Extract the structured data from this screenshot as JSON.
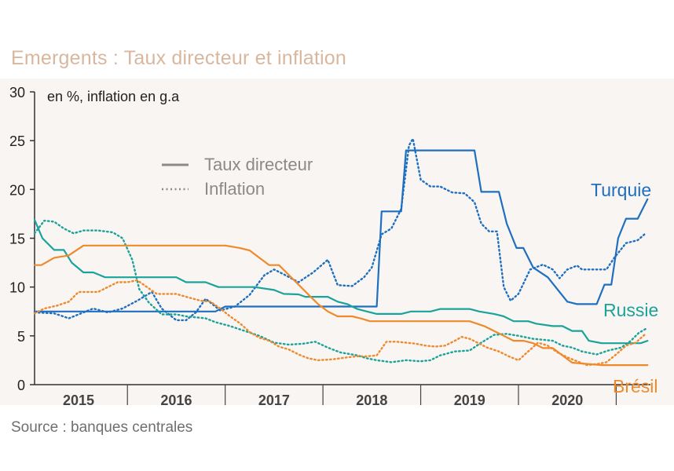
{
  "chart_data": {
    "type": "line",
    "title": "Emergents : Taux directeur et inflation",
    "unit_note": "en %, inflation en g.a",
    "source": "Source : banques centrales",
    "ylim": [
      0,
      30
    ],
    "yticks": [
      "0",
      "5",
      "10",
      "15",
      "20",
      "25",
      "30"
    ],
    "xlim": [
      2014.55,
      2020.85
    ],
    "xticks": [
      {
        "label": "2015",
        "x": 2015.0
      },
      {
        "label": "2016",
        "x": 2016.0
      },
      {
        "label": "2017",
        "x": 2017.0
      },
      {
        "label": "2018",
        "x": 2018.0
      },
      {
        "label": "2019",
        "x": 2019.0
      },
      {
        "label": "2020",
        "x": 2020.0
      }
    ],
    "year_dividers": [
      2015.5,
      2016.5,
      2017.5,
      2018.5,
      2019.5,
      2020.5
    ],
    "legend": {
      "policy_rate": "Taux directeur",
      "inflation": "Inflation",
      "position": "top-left"
    },
    "colors": {
      "turquie": "#1f6fc0",
      "russie": "#1aa39a",
      "bresil": "#ef8a2c"
    },
    "series": [
      {
        "name": "Turquie",
        "kind": "Taux directeur",
        "color_key": "turquie",
        "points": [
          [
            2014.55,
            7.5
          ],
          [
            2016.4,
            7.5
          ],
          [
            2016.5,
            8.0
          ],
          [
            2018.05,
            8.0
          ],
          [
            2018.1,
            17.75
          ],
          [
            2018.3,
            17.75
          ],
          [
            2018.35,
            24.0
          ],
          [
            2019.05,
            24.0
          ],
          [
            2019.12,
            19.75
          ],
          [
            2019.3,
            19.75
          ],
          [
            2019.38,
            16.5
          ],
          [
            2019.48,
            14.0
          ],
          [
            2019.55,
            14.0
          ],
          [
            2019.65,
            12.0
          ],
          [
            2019.8,
            11.0
          ],
          [
            2019.92,
            9.5
          ],
          [
            2020.0,
            8.5
          ],
          [
            2020.1,
            8.25
          ],
          [
            2020.3,
            8.25
          ],
          [
            2020.38,
            10.25
          ],
          [
            2020.45,
            10.25
          ],
          [
            2020.52,
            15.0
          ],
          [
            2020.6,
            17.0
          ],
          [
            2020.72,
            17.0
          ],
          [
            2020.82,
            19.0
          ]
        ]
      },
      {
        "name": "Turquie",
        "kind": "Inflation",
        "color_key": "turquie",
        "points": [
          [
            2014.55,
            7.4
          ],
          [
            2014.75,
            7.3
          ],
          [
            2014.9,
            6.8
          ],
          [
            2015.0,
            7.2
          ],
          [
            2015.15,
            7.8
          ],
          [
            2015.3,
            7.4
          ],
          [
            2015.45,
            7.8
          ],
          [
            2015.6,
            8.6
          ],
          [
            2015.75,
            9.5
          ],
          [
            2015.85,
            7.8
          ],
          [
            2016.0,
            6.6
          ],
          [
            2016.1,
            6.6
          ],
          [
            2016.2,
            7.4
          ],
          [
            2016.3,
            8.8
          ],
          [
            2016.45,
            7.6
          ],
          [
            2016.6,
            8.0
          ],
          [
            2016.75,
            9.2
          ],
          [
            2016.9,
            11.2
          ],
          [
            2017.0,
            11.8
          ],
          [
            2017.1,
            11.3
          ],
          [
            2017.25,
            10.5
          ],
          [
            2017.4,
            11.5
          ],
          [
            2017.55,
            12.8
          ],
          [
            2017.65,
            10.2
          ],
          [
            2017.8,
            10.1
          ],
          [
            2017.92,
            11.0
          ],
          [
            2018.0,
            12.0
          ],
          [
            2018.1,
            15.4
          ],
          [
            2018.2,
            16.0
          ],
          [
            2018.3,
            18.0
          ],
          [
            2018.38,
            24.5
          ],
          [
            2018.42,
            25.2
          ],
          [
            2018.5,
            21.0
          ],
          [
            2018.6,
            20.3
          ],
          [
            2018.7,
            20.3
          ],
          [
            2018.82,
            19.7
          ],
          [
            2018.95,
            19.6
          ],
          [
            2019.05,
            18.7
          ],
          [
            2019.12,
            16.5
          ],
          [
            2019.2,
            15.7
          ],
          [
            2019.28,
            15.7
          ],
          [
            2019.35,
            10.0
          ],
          [
            2019.42,
            8.6
          ],
          [
            2019.5,
            9.3
          ],
          [
            2019.62,
            11.8
          ],
          [
            2019.75,
            12.3
          ],
          [
            2019.85,
            11.8
          ],
          [
            2019.92,
            10.9
          ],
          [
            2020.0,
            11.8
          ],
          [
            2020.1,
            12.2
          ],
          [
            2020.15,
            11.8
          ],
          [
            2020.3,
            11.8
          ],
          [
            2020.4,
            11.8
          ],
          [
            2020.48,
            13.0
          ],
          [
            2020.6,
            14.5
          ],
          [
            2020.72,
            14.8
          ],
          [
            2020.8,
            15.5
          ]
        ]
      },
      {
        "name": "Russie",
        "kind": "Taux directeur",
        "color_key": "russie",
        "points": [
          [
            2014.55,
            16.9
          ],
          [
            2014.63,
            15.0
          ],
          [
            2014.75,
            13.8
          ],
          [
            2014.85,
            13.8
          ],
          [
            2014.93,
            12.5
          ],
          [
            2015.05,
            11.5
          ],
          [
            2015.15,
            11.5
          ],
          [
            2015.27,
            11.0
          ],
          [
            2016.0,
            11.0
          ],
          [
            2016.1,
            10.5
          ],
          [
            2016.3,
            10.5
          ],
          [
            2016.43,
            10.0
          ],
          [
            2016.8,
            10.0
          ],
          [
            2017.0,
            9.7
          ],
          [
            2017.1,
            9.3
          ],
          [
            2017.25,
            9.25
          ],
          [
            2017.32,
            9.0
          ],
          [
            2017.55,
            9.0
          ],
          [
            2017.65,
            8.5
          ],
          [
            2017.75,
            8.25
          ],
          [
            2017.85,
            7.75
          ],
          [
            2017.95,
            7.5
          ],
          [
            2018.05,
            7.25
          ],
          [
            2018.3,
            7.25
          ],
          [
            2018.4,
            7.5
          ],
          [
            2018.6,
            7.5
          ],
          [
            2018.7,
            7.75
          ],
          [
            2019.0,
            7.75
          ],
          [
            2019.1,
            7.5
          ],
          [
            2019.25,
            7.25
          ],
          [
            2019.35,
            7.0
          ],
          [
            2019.45,
            6.5
          ],
          [
            2019.6,
            6.5
          ],
          [
            2019.68,
            6.25
          ],
          [
            2019.85,
            6.0
          ],
          [
            2019.95,
            6.0
          ],
          [
            2020.05,
            5.5
          ],
          [
            2020.15,
            5.5
          ],
          [
            2020.22,
            4.5
          ],
          [
            2020.35,
            4.25
          ],
          [
            2020.75,
            4.25
          ],
          [
            2020.82,
            4.5
          ]
        ]
      },
      {
        "name": "Russie",
        "kind": "Inflation",
        "color_key": "russie",
        "points": [
          [
            2014.55,
            15.5
          ],
          [
            2014.65,
            16.8
          ],
          [
            2014.75,
            16.7
          ],
          [
            2014.85,
            16.0
          ],
          [
            2014.95,
            15.5
          ],
          [
            2015.05,
            15.8
          ],
          [
            2015.2,
            15.8
          ],
          [
            2015.35,
            15.6
          ],
          [
            2015.45,
            15.0
          ],
          [
            2015.55,
            12.8
          ],
          [
            2015.62,
            9.8
          ],
          [
            2015.72,
            8.4
          ],
          [
            2015.85,
            7.2
          ],
          [
            2016.0,
            7.2
          ],
          [
            2016.1,
            7.0
          ],
          [
            2016.3,
            6.8
          ],
          [
            2016.4,
            6.4
          ],
          [
            2016.55,
            6.0
          ],
          [
            2016.7,
            5.5
          ],
          [
            2016.85,
            5.0
          ],
          [
            2017.0,
            4.3
          ],
          [
            2017.15,
            4.1
          ],
          [
            2017.3,
            4.2
          ],
          [
            2017.42,
            4.4
          ],
          [
            2017.55,
            3.8
          ],
          [
            2017.68,
            3.3
          ],
          [
            2017.85,
            3.0
          ],
          [
            2017.95,
            2.7
          ],
          [
            2018.05,
            2.5
          ],
          [
            2018.2,
            2.3
          ],
          [
            2018.35,
            2.5
          ],
          [
            2018.5,
            2.4
          ],
          [
            2018.6,
            2.5
          ],
          [
            2018.7,
            3.0
          ],
          [
            2018.85,
            3.4
          ],
          [
            2019.0,
            3.5
          ],
          [
            2019.12,
            4.3
          ],
          [
            2019.25,
            5.1
          ],
          [
            2019.38,
            5.2
          ],
          [
            2019.5,
            5.0
          ],
          [
            2019.65,
            4.7
          ],
          [
            2019.75,
            4.6
          ],
          [
            2019.85,
            4.5
          ],
          [
            2019.95,
            4.0
          ],
          [
            2020.05,
            3.8
          ],
          [
            2020.15,
            3.4
          ],
          [
            2020.3,
            3.1
          ],
          [
            2020.42,
            3.5
          ],
          [
            2020.55,
            3.8
          ],
          [
            2020.65,
            4.5
          ],
          [
            2020.73,
            5.3
          ],
          [
            2020.8,
            5.7
          ]
        ]
      },
      {
        "name": "Brésil",
        "kind": "Taux directeur",
        "color_key": "bresil",
        "points": [
          [
            2014.55,
            12.25
          ],
          [
            2014.62,
            12.25
          ],
          [
            2014.75,
            13.0
          ],
          [
            2014.9,
            13.25
          ],
          [
            2015.05,
            14.25
          ],
          [
            2016.5,
            14.25
          ],
          [
            2016.65,
            14.0
          ],
          [
            2016.75,
            13.75
          ],
          [
            2016.85,
            13.0
          ],
          [
            2016.95,
            12.25
          ],
          [
            2017.05,
            12.25
          ],
          [
            2017.15,
            11.25
          ],
          [
            2017.25,
            10.25
          ],
          [
            2017.35,
            9.25
          ],
          [
            2017.45,
            8.25
          ],
          [
            2017.55,
            7.5
          ],
          [
            2017.65,
            7.0
          ],
          [
            2017.8,
            7.0
          ],
          [
            2017.9,
            6.75
          ],
          [
            2017.98,
            6.5
          ],
          [
            2018.1,
            6.5
          ],
          [
            2019.0,
            6.5
          ],
          [
            2019.15,
            6.0
          ],
          [
            2019.25,
            5.5
          ],
          [
            2019.35,
            5.0
          ],
          [
            2019.45,
            4.5
          ],
          [
            2019.55,
            4.5
          ],
          [
            2019.65,
            4.25
          ],
          [
            2019.75,
            3.75
          ],
          [
            2019.85,
            3.75
          ],
          [
            2019.95,
            3.0
          ],
          [
            2020.05,
            2.25
          ],
          [
            2020.35,
            2.0
          ],
          [
            2020.75,
            2.0
          ],
          [
            2020.82,
            2.0
          ]
        ]
      },
      {
        "name": "Brésil",
        "kind": "Inflation",
        "color_key": "bresil",
        "points": [
          [
            2014.55,
            7.3
          ],
          [
            2014.65,
            7.8
          ],
          [
            2014.78,
            8.1
          ],
          [
            2014.9,
            8.5
          ],
          [
            2015.0,
            9.5
          ],
          [
            2015.1,
            9.5
          ],
          [
            2015.2,
            9.5
          ],
          [
            2015.3,
            10.0
          ],
          [
            2015.4,
            10.5
          ],
          [
            2015.5,
            10.5
          ],
          [
            2015.6,
            10.7
          ],
          [
            2015.7,
            10.0
          ],
          [
            2015.8,
            9.3
          ],
          [
            2015.9,
            9.3
          ],
          [
            2016.0,
            9.3
          ],
          [
            2016.1,
            9.0
          ],
          [
            2016.25,
            8.6
          ],
          [
            2016.35,
            8.5
          ],
          [
            2016.45,
            7.8
          ],
          [
            2016.55,
            7.0
          ],
          [
            2016.65,
            6.3
          ],
          [
            2016.75,
            5.4
          ],
          [
            2016.85,
            4.8
          ],
          [
            2016.95,
            4.5
          ],
          [
            2017.05,
            3.9
          ],
          [
            2017.15,
            3.6
          ],
          [
            2017.25,
            3.1
          ],
          [
            2017.35,
            2.7
          ],
          [
            2017.45,
            2.5
          ],
          [
            2017.6,
            2.6
          ],
          [
            2017.75,
            2.8
          ],
          [
            2017.85,
            2.9
          ],
          [
            2017.95,
            2.9
          ],
          [
            2018.05,
            3.0
          ],
          [
            2018.15,
            4.4
          ],
          [
            2018.25,
            4.4
          ],
          [
            2018.35,
            4.3
          ],
          [
            2018.45,
            4.2
          ],
          [
            2018.55,
            4.0
          ],
          [
            2018.65,
            3.9
          ],
          [
            2018.75,
            4.0
          ],
          [
            2018.85,
            4.5
          ],
          [
            2018.92,
            4.9
          ],
          [
            2019.0,
            4.7
          ],
          [
            2019.08,
            4.3
          ],
          [
            2019.18,
            3.8
          ],
          [
            2019.3,
            3.4
          ],
          [
            2019.4,
            2.9
          ],
          [
            2019.5,
            2.5
          ],
          [
            2019.6,
            3.4
          ],
          [
            2019.7,
            4.3
          ],
          [
            2019.8,
            4.0
          ],
          [
            2019.9,
            3.3
          ],
          [
            2020.0,
            2.8
          ],
          [
            2020.1,
            2.4
          ],
          [
            2020.2,
            2.0
          ],
          [
            2020.3,
            2.1
          ],
          [
            2020.4,
            2.3
          ],
          [
            2020.5,
            3.1
          ],
          [
            2020.6,
            4.0
          ],
          [
            2020.7,
            4.3
          ],
          [
            2020.8,
            5.2
          ]
        ]
      }
    ],
    "end_labels": [
      {
        "text": "Turquie",
        "color_key": "turquie"
      },
      {
        "text": "Russie",
        "color_key": "russie"
      },
      {
        "text": "Brésil",
        "color_key": "bresil"
      }
    ]
  }
}
